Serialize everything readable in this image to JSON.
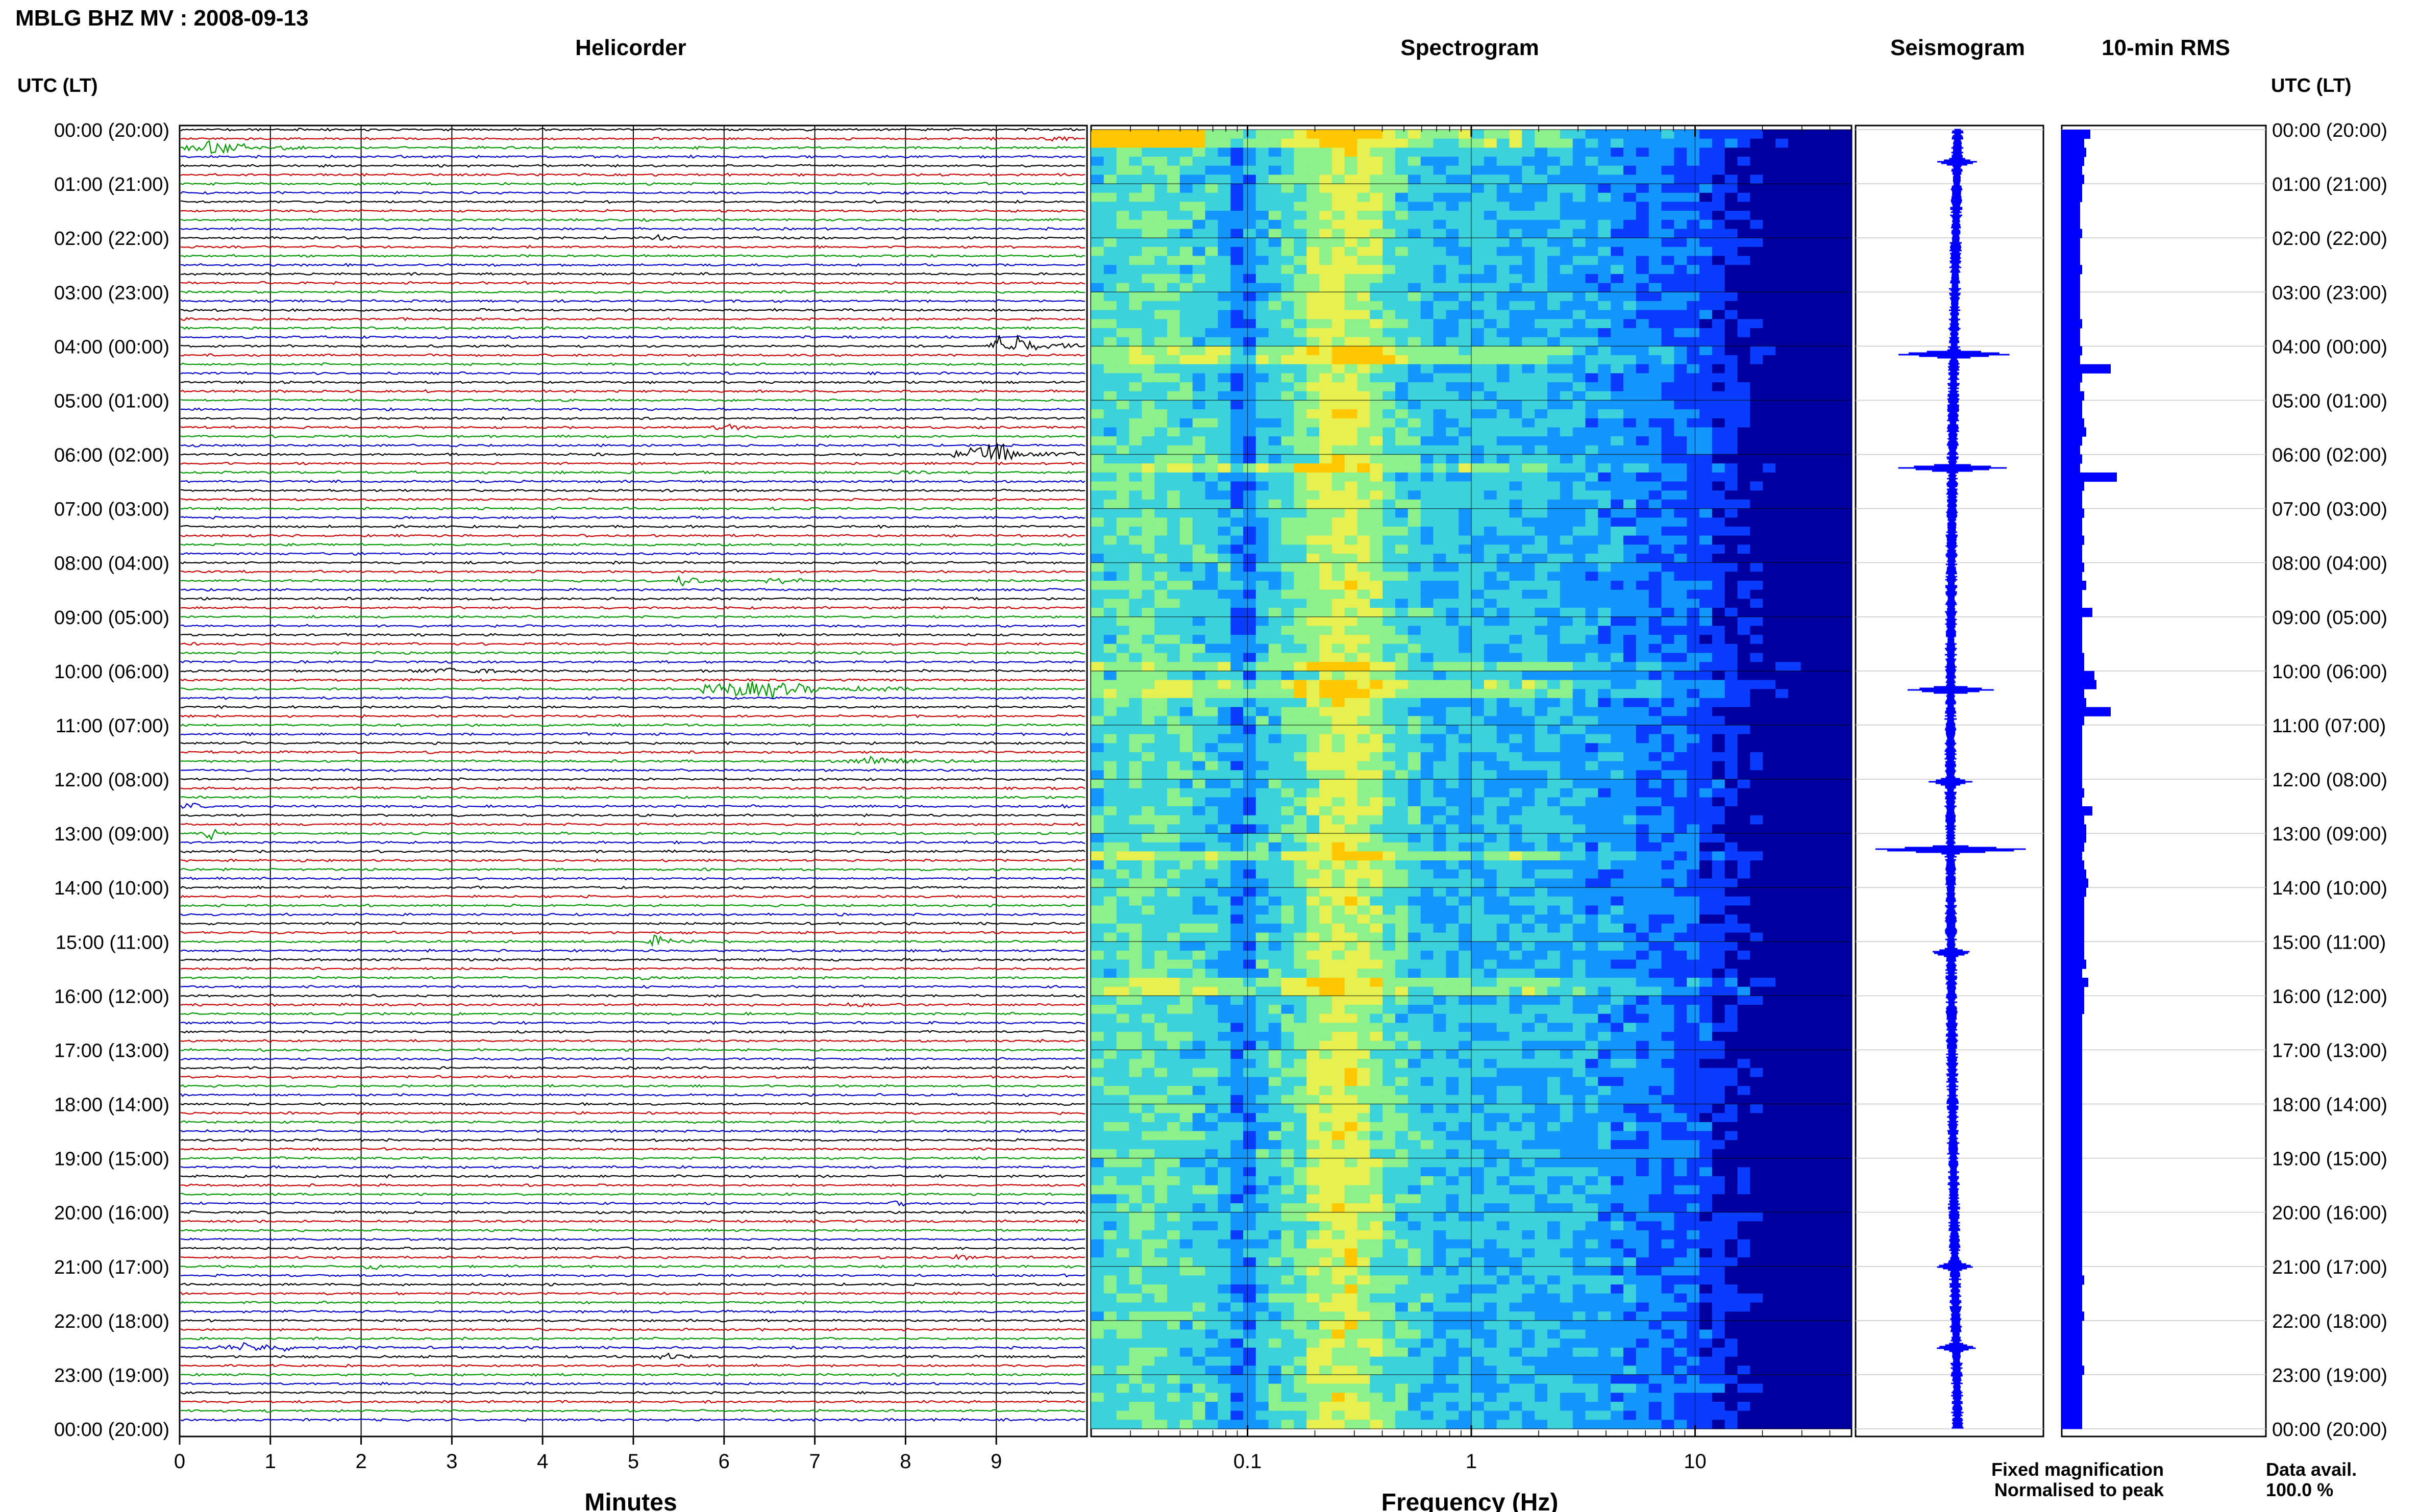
{
  "header": {
    "station_title": "MBLG BHZ MV : 2008-09-13"
  },
  "panels": {
    "helicorder": "Helicorder",
    "spectrogram": "Spectrogram",
    "seismogram": "Seismogram",
    "rms": "10-min RMS"
  },
  "time_axis_label": "UTC (LT)",
  "time_labels": [
    "00:00 (20:00)",
    "01:00 (21:00)",
    "02:00 (22:00)",
    "03:00 (23:00)",
    "04:00 (00:00)",
    "05:00 (01:00)",
    "06:00 (02:00)",
    "07:00 (03:00)",
    "08:00 (04:00)",
    "09:00 (05:00)",
    "10:00 (06:00)",
    "11:00 (07:00)",
    "12:00 (08:00)",
    "13:00 (09:00)",
    "14:00 (10:00)",
    "15:00 (11:00)",
    "16:00 (12:00)",
    "17:00 (13:00)",
    "18:00 (14:00)",
    "19:00 (15:00)",
    "20:00 (16:00)",
    "21:00 (17:00)",
    "22:00 (18:00)",
    "23:00 (19:00)",
    "00:00 (20:00)"
  ],
  "legend": {
    "fixed": "Fixed magnification",
    "fixed_color": "#1a1aff",
    "normalised": "Normalised to peak",
    "normalised_color": "#ff1a1a"
  },
  "data_avail": {
    "label": "Data avail.",
    "value": "100.0 %"
  },
  "chart_data": [
    {
      "type": "line",
      "panel": "Helicorder",
      "xlabel": "Minutes",
      "x_ticks": [
        0,
        1,
        2,
        3,
        4,
        5,
        6,
        7,
        8,
        9
      ],
      "xlim": [
        0,
        10
      ],
      "traces_per_hour": 6,
      "trace_colors": [
        "#000000",
        "#cc0000",
        "#009900",
        "#0000cc"
      ],
      "events": [
        {
          "hour": 0,
          "trace": 1,
          "start_min": 9.5,
          "end_min": 9.9,
          "amp": 0.4
        },
        {
          "hour": 0,
          "trace": 2,
          "start_min": 0.05,
          "end_min": 1.4,
          "amp": 1.2
        },
        {
          "hour": 2,
          "trace": 0,
          "start_min": 5.2,
          "end_min": 5.6,
          "amp": 0.4
        },
        {
          "hour": 4,
          "trace": 0,
          "start_min": 8.9,
          "end_min": 9.9,
          "amp": 2.2
        },
        {
          "hour": 5,
          "trace": 3,
          "start_min": 5.9,
          "end_min": 6.5,
          "amp": 0.5
        },
        {
          "hour": 6,
          "trace": 0,
          "start_min": 8.5,
          "end_min": 9.9,
          "amp": 1.8
        },
        {
          "hour": 6,
          "trace": 2,
          "start_min": 7.9,
          "end_min": 8.3,
          "amp": 0.4
        },
        {
          "hour": 8,
          "trace": 2,
          "start_min": 5.4,
          "end_min": 6.1,
          "amp": 0.8
        },
        {
          "hour": 8,
          "trace": 2,
          "start_min": 6.4,
          "end_min": 7.3,
          "amp": 0.5
        },
        {
          "hour": 10,
          "trace": 0,
          "start_min": 2.5,
          "end_min": 4.5,
          "amp": 0.4
        },
        {
          "hour": 10,
          "trace": 2,
          "start_min": 5.7,
          "end_min": 8.1,
          "amp": 1.6
        },
        {
          "hour": 11,
          "trace": 4,
          "start_min": 7.3,
          "end_min": 8.8,
          "amp": 0.9
        },
        {
          "hour": 12,
          "trace": 3,
          "start_min": 0.0,
          "end_min": 0.4,
          "amp": 0.6
        },
        {
          "hour": 12,
          "trace": 3,
          "start_min": 9.7,
          "end_min": 9.95,
          "amp": 0.4
        },
        {
          "hour": 13,
          "trace": 0,
          "start_min": 0.25,
          "end_min": 0.55,
          "amp": 1.6
        },
        {
          "hour": 15,
          "trace": 0,
          "start_min": 5.1,
          "end_min": 5.8,
          "amp": 0.9
        },
        {
          "hour": 15,
          "trace": 4,
          "start_min": 4.8,
          "end_min": 5.8,
          "amp": 0.4
        },
        {
          "hour": 16,
          "trace": 1,
          "start_min": 7.3,
          "end_min": 7.9,
          "amp": 0.4
        },
        {
          "hour": 19,
          "trace": 5,
          "start_min": 7.8,
          "end_min": 8.2,
          "amp": 0.4
        },
        {
          "hour": 20,
          "trace": 5,
          "start_min": 8.5,
          "end_min": 9.0,
          "amp": 0.4
        },
        {
          "hour": 21,
          "trace": 0,
          "start_min": 2.0,
          "end_min": 2.5,
          "amp": 0.4
        },
        {
          "hour": 22,
          "trace": 3,
          "start_min": 0.3,
          "end_min": 2.2,
          "amp": 0.6
        },
        {
          "hour": 22,
          "trace": 4,
          "start_min": 5.2,
          "end_min": 5.9,
          "amp": 0.6
        }
      ]
    },
    {
      "type": "heatmap",
      "panel": "Spectrogram",
      "xlabel": "Frequency (Hz)",
      "x_scale": "log",
      "xlim": [
        0.02,
        50
      ],
      "x_ticks": [
        0.1,
        1,
        10
      ],
      "x_tick_labels": [
        "0.1",
        "1",
        "10"
      ],
      "colormap": [
        "#0000a0",
        "#0a3cff",
        "#1496ff",
        "#3cd2dc",
        "#8cf08c",
        "#e6f050",
        "#ffc800"
      ],
      "bright_rows_hour": [
        0.05,
        4.1,
        6.2,
        9.8,
        10.25,
        13.3,
        15.75
      ],
      "gap_row_hour": 15.75
    },
    {
      "type": "line",
      "panel": "Seismogram",
      "line_color": "#0000ff",
      "spikes_hour": [
        {
          "h": 0.6,
          "a": 0.3
        },
        {
          "h": 4.15,
          "a": 1.0
        },
        {
          "h": 6.25,
          "a": 0.9
        },
        {
          "h": 10.35,
          "a": 0.7
        },
        {
          "h": 12.05,
          "a": 0.3
        },
        {
          "h": 13.3,
          "a": 1.4
        },
        {
          "h": 15.2,
          "a": 0.3
        },
        {
          "h": 21.0,
          "a": 0.25
        },
        {
          "h": 22.5,
          "a": 0.3
        }
      ]
    },
    {
      "type": "bar",
      "panel": "10-min RMS",
      "orientation": "horizontal",
      "bar_color": "#0000ff",
      "bins_per_hour": 6,
      "values": [
        14,
        11,
        12,
        11,
        10,
        11,
        10,
        10,
        9,
        9,
        9,
        10,
        9,
        9,
        9,
        10,
        9,
        9,
        9,
        9,
        9,
        10,
        9,
        9,
        10,
        9,
        24,
        10,
        9,
        11,
        10,
        10,
        11,
        12,
        10,
        9,
        10,
        9,
        27,
        11,
        10,
        10,
        11,
        10,
        10,
        11,
        10,
        10,
        11,
        10,
        12,
        10,
        10,
        15,
        10,
        10,
        10,
        10,
        11,
        11,
        16,
        17,
        11,
        12,
        24,
        11,
        10,
        10,
        10,
        10,
        10,
        10,
        10,
        11,
        10,
        15,
        11,
        12,
        12,
        11,
        10,
        11,
        12,
        13,
        12,
        11,
        11,
        11,
        11,
        11,
        11,
        11,
        12,
        10,
        13,
        11,
        11,
        11,
        10,
        10,
        10,
        10,
        10,
        10,
        10,
        10,
        10,
        10,
        10,
        10,
        10,
        10,
        10,
        10,
        10,
        10,
        10,
        10,
        10,
        10,
        10,
        10,
        10,
        10,
        10,
        10,
        10,
        11,
        10,
        10,
        10,
        11,
        10,
        10,
        10,
        10,
        10,
        11,
        10,
        10,
        10,
        10,
        10,
        10
      ]
    }
  ]
}
